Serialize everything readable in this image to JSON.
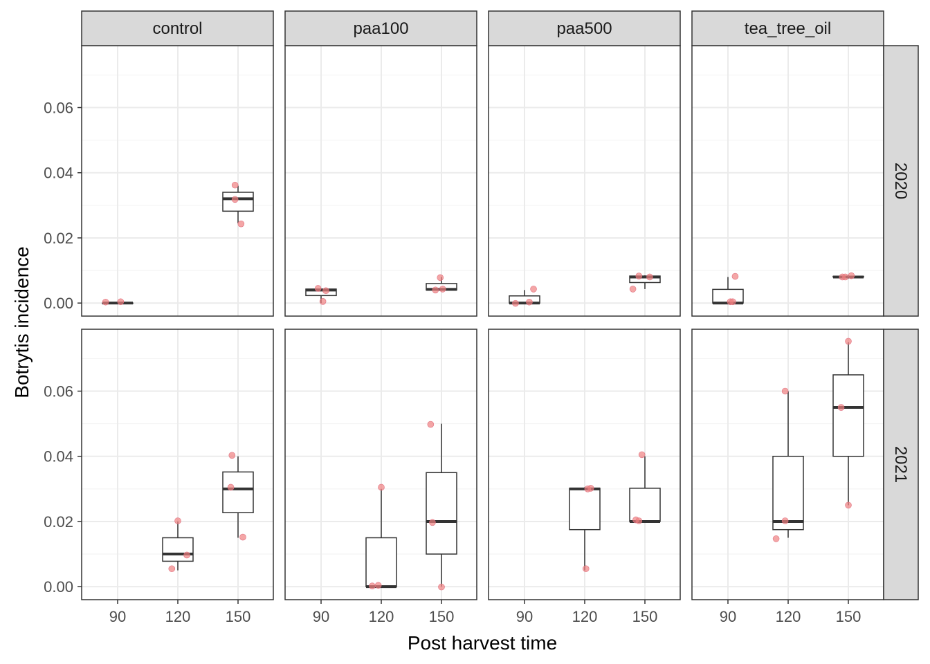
{
  "chart_data": {
    "type": "boxplot",
    "title": "",
    "xlabel": "Post harvest time",
    "ylabel": "Botrytis incidence",
    "x_categories": [
      "90",
      "120",
      "150"
    ],
    "columns": [
      "control",
      "paa100",
      "paa500",
      "tea_tree_oil"
    ],
    "rows": [
      "2020",
      "2021"
    ],
    "ylim": [
      -0.004,
      0.079
    ],
    "yticks": [
      0.0,
      0.02,
      0.04,
      0.06
    ],
    "ytick_labels": [
      "0.00",
      "0.02",
      "0.04",
      "0.06"
    ],
    "point_color": "#f08080",
    "panels": [
      {
        "row": "2020",
        "col": "control",
        "boxes": [
          {
            "x": "90",
            "whisker_low": 0.0,
            "q1": 0.0,
            "median": 0.0,
            "q3": 0.0,
            "whisker_high": 0.0
          },
          {
            "x": "150",
            "whisker_low": 0.0245,
            "q1": 0.0282,
            "median": 0.032,
            "q3": 0.034,
            "whisker_high": 0.036
          }
        ],
        "points": [
          {
            "x": "90",
            "jitter": -0.2,
            "y": 0.0003
          },
          {
            "x": "90",
            "jitter": 0.05,
            "y": 0.0004
          },
          {
            "x": "150",
            "jitter": -0.05,
            "y": 0.0362
          },
          {
            "x": "150",
            "jitter": -0.05,
            "y": 0.0318
          },
          {
            "x": "150",
            "jitter": 0.05,
            "y": 0.0243
          }
        ]
      },
      {
        "row": "2020",
        "col": "paa100",
        "boxes": [
          {
            "x": "90",
            "whisker_low": 0.0,
            "q1": 0.0023,
            "median": 0.004,
            "q3": 0.0043,
            "whisker_high": 0.0045
          },
          {
            "x": "150",
            "whisker_low": 0.004,
            "q1": 0.004,
            "median": 0.0042,
            "q3": 0.006,
            "whisker_high": 0.008
          }
        ],
        "points": [
          {
            "x": "90",
            "jitter": -0.05,
            "y": 0.0045
          },
          {
            "x": "90",
            "jitter": 0.08,
            "y": 0.0038
          },
          {
            "x": "90",
            "jitter": 0.03,
            "y": 0.0005
          },
          {
            "x": "150",
            "jitter": -0.1,
            "y": 0.004
          },
          {
            "x": "150",
            "jitter": 0.02,
            "y": 0.0043
          },
          {
            "x": "150",
            "jitter": -0.02,
            "y": 0.0078
          }
        ]
      },
      {
        "row": "2020",
        "col": "paa500",
        "boxes": [
          {
            "x": "90",
            "whisker_low": 0.0,
            "q1": 0.0,
            "median": 0.0,
            "q3": 0.0022,
            "whisker_high": 0.004
          },
          {
            "x": "150",
            "whisker_low": 0.0043,
            "q1": 0.0063,
            "median": 0.008,
            "q3": 0.0083,
            "whisker_high": 0.0085
          }
        ],
        "points": [
          {
            "x": "90",
            "jitter": -0.15,
            "y": -0.0001
          },
          {
            "x": "90",
            "jitter": 0.08,
            "y": 0.0003
          },
          {
            "x": "90",
            "jitter": 0.15,
            "y": 0.0043
          },
          {
            "x": "150",
            "jitter": -0.2,
            "y": 0.0043
          },
          {
            "x": "150",
            "jitter": -0.1,
            "y": 0.0083
          },
          {
            "x": "150",
            "jitter": 0.08,
            "y": 0.008
          }
        ]
      },
      {
        "row": "2020",
        "col": "tea_tree_oil",
        "boxes": [
          {
            "x": "90",
            "whisker_low": 0.0,
            "q1": 0.0,
            "median": 0.0,
            "q3": 0.0042,
            "whisker_high": 0.008
          },
          {
            "x": "150",
            "whisker_low": 0.008,
            "q1": 0.008,
            "median": 0.008,
            "q3": 0.0082,
            "whisker_high": 0.0085
          }
        ],
        "points": [
          {
            "x": "90",
            "jitter": 0.04,
            "y": 0.0004
          },
          {
            "x": "90",
            "jitter": 0.08,
            "y": 0.0004
          },
          {
            "x": "90",
            "jitter": 0.12,
            "y": 0.0082
          },
          {
            "x": "150",
            "jitter": -0.1,
            "y": 0.008
          },
          {
            "x": "150",
            "jitter": -0.05,
            "y": 0.008
          },
          {
            "x": "150",
            "jitter": 0.05,
            "y": 0.0084
          }
        ]
      },
      {
        "row": "2021",
        "col": "control",
        "boxes": [
          {
            "x": "120",
            "whisker_low": 0.005,
            "q1": 0.0078,
            "median": 0.01,
            "q3": 0.015,
            "whisker_high": 0.02
          },
          {
            "x": "150",
            "whisker_low": 0.015,
            "q1": 0.0227,
            "median": 0.03,
            "q3": 0.0352,
            "whisker_high": 0.04
          }
        ],
        "points": [
          {
            "x": "120",
            "jitter": -0.1,
            "y": 0.0055
          },
          {
            "x": "120",
            "jitter": 0.0,
            "y": 0.0202
          },
          {
            "x": "120",
            "jitter": 0.15,
            "y": 0.0097
          },
          {
            "x": "150",
            "jitter": -0.1,
            "y": 0.0403
          },
          {
            "x": "150",
            "jitter": -0.12,
            "y": 0.0305
          },
          {
            "x": "150",
            "jitter": 0.08,
            "y": 0.0152
          }
        ]
      },
      {
        "row": "2021",
        "col": "paa100",
        "boxes": [
          {
            "x": "120",
            "whisker_low": 0.0,
            "q1": 0.0,
            "median": 0.0,
            "q3": 0.015,
            "whisker_high": 0.03
          },
          {
            "x": "150",
            "whisker_low": 0.0,
            "q1": 0.01,
            "median": 0.02,
            "q3": 0.035,
            "whisker_high": 0.05
          }
        ],
        "points": [
          {
            "x": "120",
            "jitter": -0.15,
            "y": 0.0002
          },
          {
            "x": "120",
            "jitter": -0.05,
            "y": 0.0004
          },
          {
            "x": "120",
            "jitter": 0.0,
            "y": 0.0305
          },
          {
            "x": "150",
            "jitter": -0.18,
            "y": 0.0498
          },
          {
            "x": "150",
            "jitter": -0.15,
            "y": 0.0197
          },
          {
            "x": "150",
            "jitter": 0.0,
            "y": -0.0001
          }
        ]
      },
      {
        "row": "2021",
        "col": "paa500",
        "boxes": [
          {
            "x": "120",
            "whisker_low": 0.005,
            "q1": 0.0175,
            "median": 0.03,
            "q3": 0.0302,
            "whisker_high": 0.0305
          },
          {
            "x": "150",
            "whisker_low": 0.02,
            "q1": 0.02,
            "median": 0.02,
            "q3": 0.0302,
            "whisker_high": 0.04
          }
        ],
        "points": [
          {
            "x": "120",
            "jitter": 0.02,
            "y": 0.0055
          },
          {
            "x": "120",
            "jitter": 0.05,
            "y": 0.03
          },
          {
            "x": "120",
            "jitter": 0.1,
            "y": 0.0302
          },
          {
            "x": "150",
            "jitter": -0.15,
            "y": 0.0205
          },
          {
            "x": "150",
            "jitter": -0.1,
            "y": 0.0202
          },
          {
            "x": "150",
            "jitter": -0.05,
            "y": 0.0405
          }
        ]
      },
      {
        "row": "2021",
        "col": "tea_tree_oil",
        "boxes": [
          {
            "x": "120",
            "whisker_low": 0.015,
            "q1": 0.0175,
            "median": 0.02,
            "q3": 0.04,
            "whisker_high": 0.06
          },
          {
            "x": "150",
            "whisker_low": 0.025,
            "q1": 0.04,
            "median": 0.055,
            "q3": 0.065,
            "whisker_high": 0.075
          }
        ],
        "points": [
          {
            "x": "120",
            "jitter": -0.2,
            "y": 0.0147
          },
          {
            "x": "120",
            "jitter": -0.05,
            "y": 0.06
          },
          {
            "x": "120",
            "jitter": -0.05,
            "y": 0.0202
          },
          {
            "x": "150",
            "jitter": -0.12,
            "y": 0.055
          },
          {
            "x": "150",
            "jitter": 0.0,
            "y": 0.025
          },
          {
            "x": "150",
            "jitter": 0.0,
            "y": 0.0753
          }
        ]
      }
    ]
  }
}
